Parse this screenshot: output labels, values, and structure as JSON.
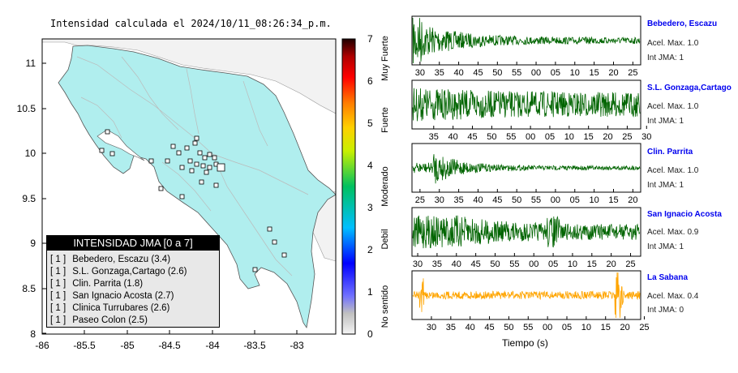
{
  "map": {
    "title": "Intensidad calculada el 2024/10/11_08:26:34_p.m.",
    "x_ticks": [
      "-86",
      "-85.5",
      "-85",
      "-84.5",
      "-84",
      "-83.5",
      "-83"
    ],
    "y_ticks": [
      "11",
      "10.5",
      "10",
      "9.5",
      "9",
      "8.5",
      "8"
    ]
  },
  "colorbar": {
    "ticks": [
      "0",
      "1",
      "2",
      "3",
      "4",
      "5",
      "6",
      "7"
    ],
    "labels": [
      "No sentido",
      "Debil",
      "Moderado",
      "Fuerte",
      "Muy Fuerte"
    ]
  },
  "legend": {
    "header": "INTENSIDAD JMA [0 a 7]",
    "items": [
      {
        "flag": "[ 1 ]",
        "text": "Bebedero, Escazu (3.4)"
      },
      {
        "flag": "[ 1 ]",
        "text": "S.L. Gonzaga,Cartago (2.6)"
      },
      {
        "flag": "[ 1 ]",
        "text": "Clin. Parrita (1.8)"
      },
      {
        "flag": "[ 1 ]",
        "text": "San Ignacio Acosta (2.7)"
      },
      {
        "flag": "[ 1 ]",
        "text": "Clinica Turrubares (2.6)"
      },
      {
        "flag": "[ 1 ]",
        "text": "Paseo Colon (2.5)"
      }
    ]
  },
  "waveforms": [
    {
      "station": "Bebedero, Escazu",
      "accel": "Acel. Max. 1.0",
      "jma": "Int JMA: 1",
      "color": "#006400",
      "ticks": [
        "30",
        "35",
        "40",
        "45",
        "50",
        "55",
        "00",
        "05",
        "10",
        "15",
        "20",
        "25"
      ]
    },
    {
      "station": "S.L. Gonzaga,Cartago",
      "accel": "Acel. Max. 1.0",
      "jma": "Int JMA: 1",
      "color": "#006400",
      "ticks": [
        "35",
        "40",
        "45",
        "50",
        "55",
        "00",
        "05",
        "10",
        "15",
        "20",
        "25",
        "30"
      ]
    },
    {
      "station": "Clin. Parrita",
      "accel": "Acel. Max. 1.0",
      "jma": "Int JMA: 1",
      "color": "#006400",
      "ticks": [
        "25",
        "30",
        "35",
        "40",
        "45",
        "50",
        "55",
        "00",
        "05",
        "10",
        "15",
        "20"
      ]
    },
    {
      "station": "San Ignacio Acosta",
      "accel": "Acel. Max. 0.9",
      "jma": "Int JMA: 1",
      "color": "#006400",
      "ticks": [
        "30",
        "35",
        "40",
        "45",
        "50",
        "55",
        "00",
        "05",
        "10",
        "15",
        "20",
        "25"
      ]
    },
    {
      "station": "La Sabana",
      "accel": "Acel. Max. 0.4",
      "jma": "Int JMA: 0",
      "color": "#ffa500",
      "ticks": [
        "30",
        "35",
        "40",
        "45",
        "50",
        "55",
        "00",
        "05",
        "10",
        "15",
        "20",
        "25"
      ]
    }
  ],
  "xlabel": "Tiempo (s)"
}
